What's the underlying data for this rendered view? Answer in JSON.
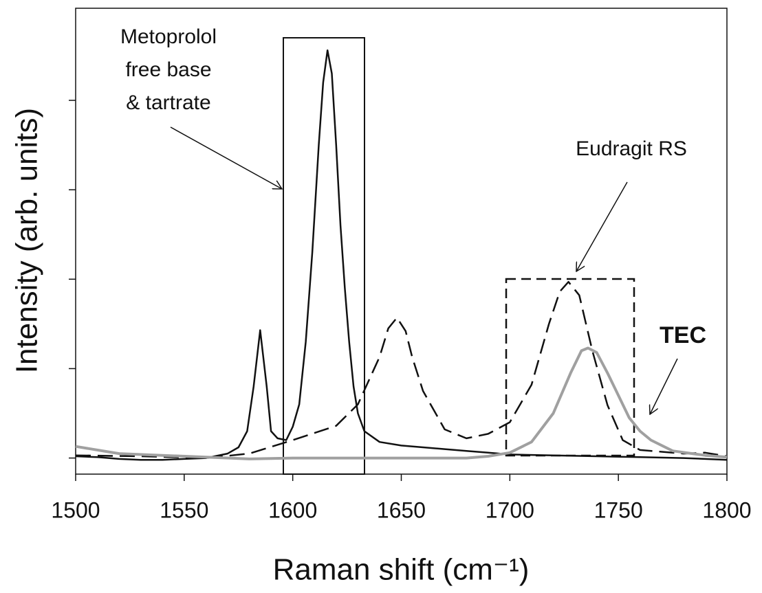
{
  "chart_data": {
    "type": "line",
    "xlabel": "Raman shift (cm⁻¹)",
    "ylabel": "Intensity (arb. units)",
    "xlim": [
      1500,
      1800
    ],
    "xticks": [
      1500,
      1550,
      1600,
      1650,
      1700,
      1750,
      1800
    ],
    "ylim": [
      -0.18,
      5.03
    ],
    "yticks": [
      0,
      1,
      2,
      3,
      4
    ],
    "series": [
      {
        "name": "Metoprolol free base & tartrate",
        "color": "#111111",
        "dash": "solid",
        "x": [
          1500,
          1510,
          1520,
          1530,
          1540,
          1550,
          1560,
          1570,
          1575,
          1579,
          1582,
          1585,
          1588,
          1590,
          1593,
          1597,
          1600,
          1603,
          1606,
          1609,
          1612,
          1614,
          1616,
          1618,
          1620,
          1622,
          1624,
          1626,
          1628,
          1630,
          1633,
          1640,
          1650,
          1660,
          1670,
          1680,
          1690,
          1700,
          1720,
          1740,
          1760,
          1780,
          1800
        ],
        "values": [
          0.02,
          0.01,
          -0.01,
          -0.02,
          -0.02,
          -0.01,
          0.0,
          0.05,
          0.12,
          0.3,
          0.8,
          1.43,
          0.8,
          0.3,
          0.22,
          0.2,
          0.35,
          0.6,
          1.3,
          2.3,
          3.5,
          4.2,
          4.56,
          4.3,
          3.5,
          2.6,
          1.9,
          1.3,
          0.8,
          0.5,
          0.3,
          0.18,
          0.14,
          0.12,
          0.1,
          0.08,
          0.06,
          0.04,
          0.03,
          0.02,
          0.01,
          0.0,
          -0.02
        ]
      },
      {
        "name": "Eudragit RS",
        "color": "#111111",
        "dash": "dashed",
        "x": [
          1500,
          1530,
          1560,
          1580,
          1600,
          1620,
          1630,
          1640,
          1644,
          1648,
          1652,
          1655,
          1660,
          1670,
          1680,
          1690,
          1700,
          1710,
          1718,
          1723,
          1727,
          1732,
          1738,
          1745,
          1752,
          1760,
          1770,
          1780,
          1790,
          1800
        ],
        "values": [
          0.03,
          0.02,
          0.0,
          0.05,
          0.2,
          0.36,
          0.6,
          1.13,
          1.45,
          1.57,
          1.42,
          1.13,
          0.75,
          0.32,
          0.22,
          0.27,
          0.4,
          0.82,
          1.5,
          1.86,
          1.97,
          1.82,
          1.2,
          0.59,
          0.2,
          0.09,
          0.07,
          0.05,
          0.06,
          0.02
        ]
      },
      {
        "name": "TEC",
        "color": "#a0a0a0",
        "dash": "solid",
        "x": [
          1500,
          1520,
          1540,
          1560,
          1580,
          1600,
          1640,
          1680,
          1690,
          1700,
          1710,
          1720,
          1728,
          1733,
          1736,
          1740,
          1745,
          1750,
          1755,
          1760,
          1765,
          1775,
          1790,
          1800
        ],
        "values": [
          0.13,
          0.05,
          0.03,
          0.01,
          -0.01,
          0.0,
          0.0,
          0.0,
          0.02,
          0.06,
          0.18,
          0.5,
          0.95,
          1.2,
          1.23,
          1.18,
          0.95,
          0.7,
          0.45,
          0.3,
          0.2,
          0.08,
          0.03,
          0.01
        ]
      }
    ]
  }
}
